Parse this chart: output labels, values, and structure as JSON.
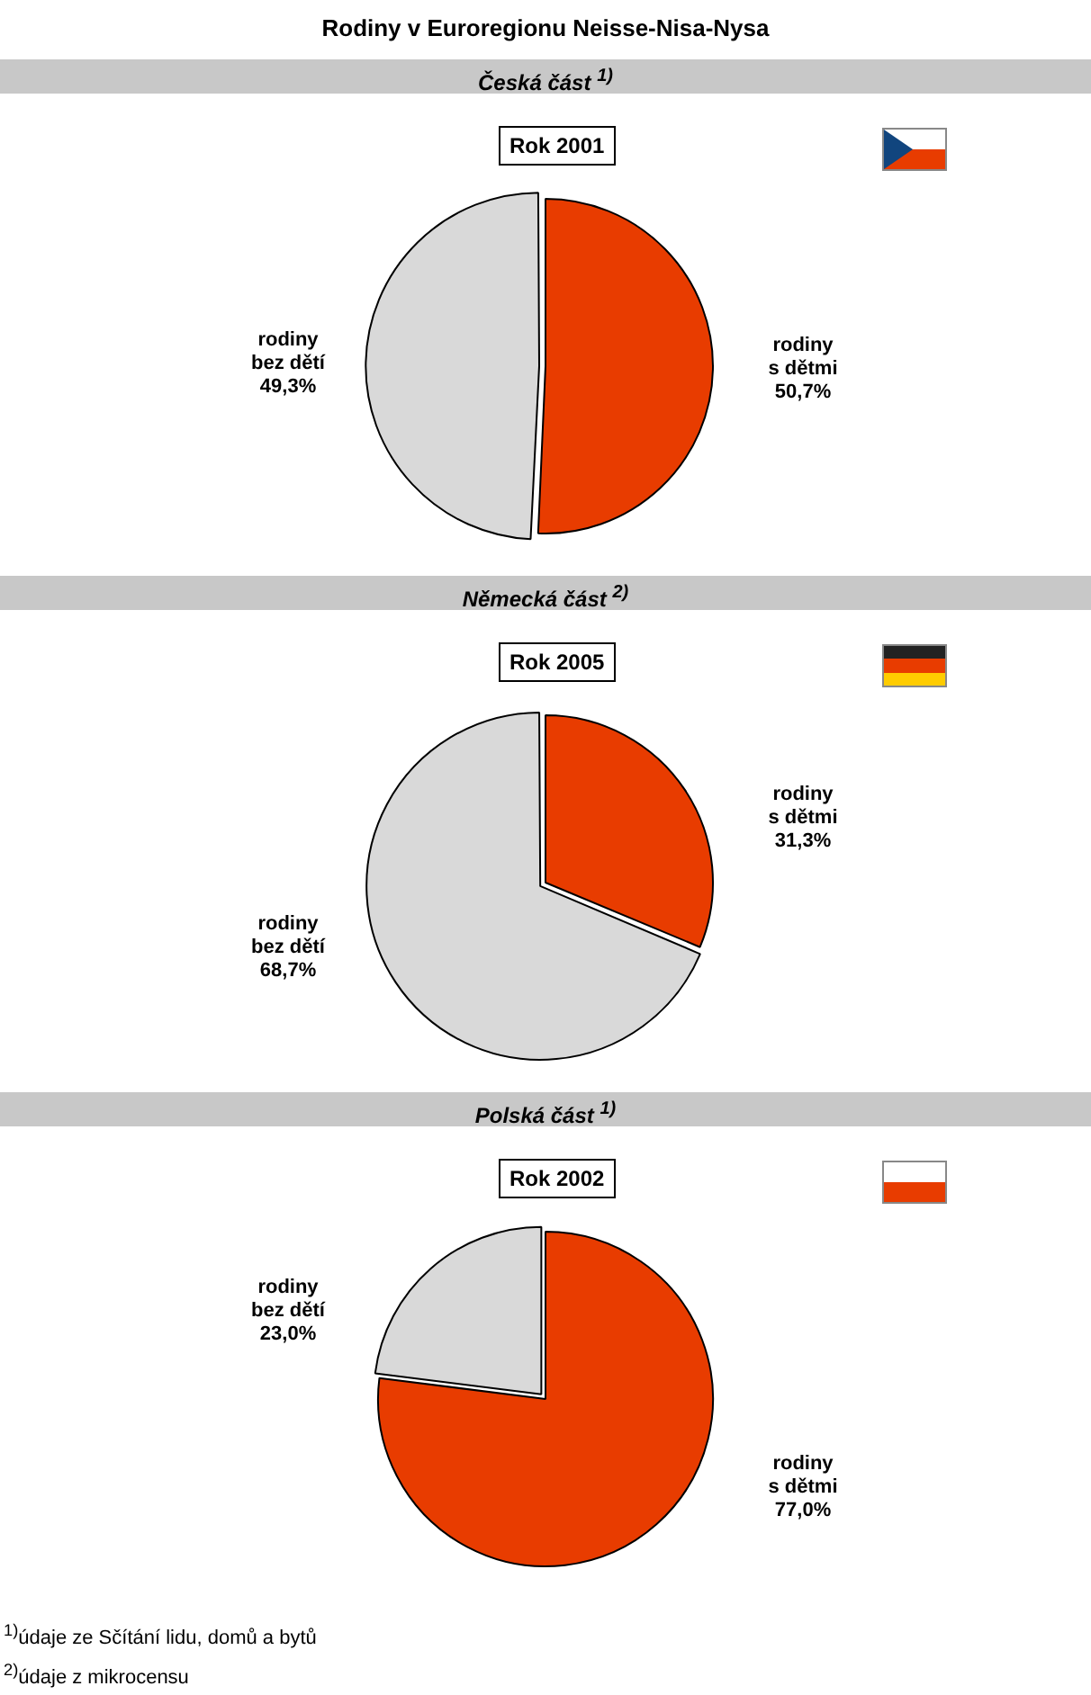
{
  "chart_data": [
    {
      "type": "pie",
      "title": "Česká část $^{1)}$",
      "subtitle": "Rok 2001",
      "annotations": [
        "Rodiny v Euroregionu Neisse-Nisa-Nysa"
      ],
      "categories": [
        "rodiny s dětmi",
        "rodiny bez dětí"
      ],
      "values": [
        50.7,
        49.3
      ],
      "value_labels": [
        "50,7%",
        "49,3%"
      ],
      "colors": [
        "#e83c00",
        "#d9d9d9"
      ]
    },
    {
      "type": "pie",
      "title": "Německá část $^{2)}$",
      "subtitle": "Rok 2005",
      "categories": [
        "rodiny s dětmi",
        "rodiny bez dětí"
      ],
      "values": [
        31.3,
        68.7
      ],
      "value_labels": [
        "31,3%",
        "68,7%"
      ],
      "colors": [
        "#e83c00",
        "#d9d9d9"
      ]
    },
    {
      "type": "pie",
      "title": "Polská část $^{1)}$",
      "subtitle": "Rok 2002",
      "annotations": [
        "$^{1)}$údaje ze Sčítání lidu, domů a bytů",
        "$^{2)}$údaje z mikrocensu"
      ],
      "categories": [
        "rodiny s dětmi",
        "rodiny bez dětí"
      ],
      "values": [
        77.0,
        23.0
      ],
      "value_labels": [
        "77,0%",
        "23,0%"
      ],
      "colors": [
        "#e83c00",
        "#d9d9d9"
      ]
    }
  ]
}
